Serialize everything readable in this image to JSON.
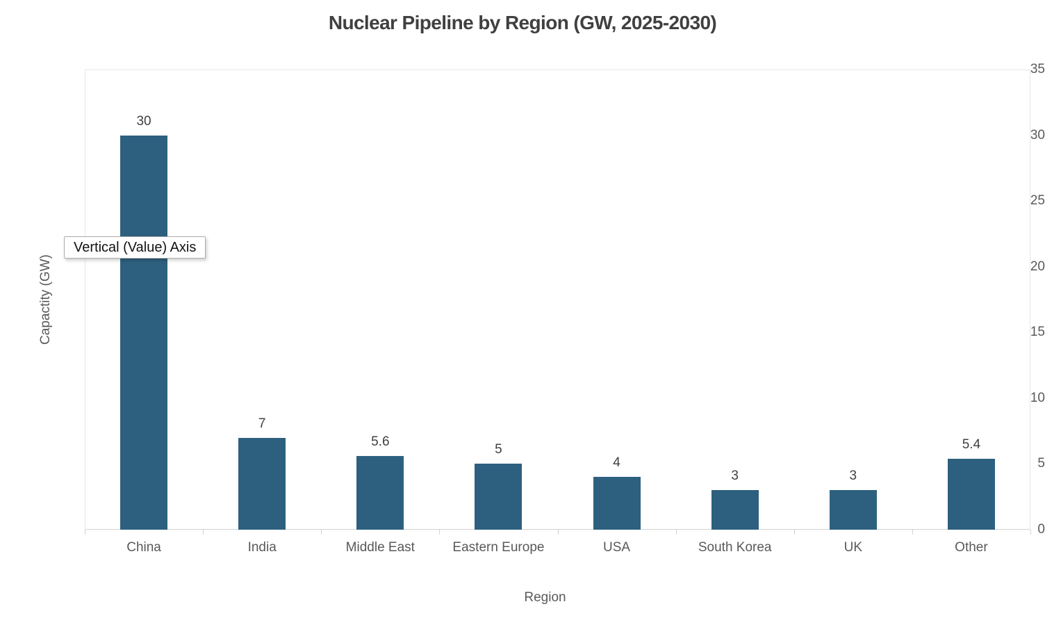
{
  "chart_data": {
    "type": "bar",
    "title": "Nuclear Pipeline by Region (GW, 2025-2030)",
    "categories": [
      "China",
      "India",
      "Middle East",
      "Eastern Europe",
      "USA",
      "South Korea",
      "UK",
      "Other"
    ],
    "values": [
      30,
      7,
      5.6,
      5,
      4,
      3,
      3,
      5.4
    ],
    "data_labels": [
      "30",
      "7",
      "5.6",
      "5",
      "4",
      "3",
      "3",
      "5.4"
    ],
    "xlabel": "Region",
    "ylabel": "Capactity (GW)",
    "ylim": [
      0,
      35
    ],
    "yticks": [
      0,
      5,
      10,
      15,
      20,
      25,
      30,
      35
    ],
    "grid": false,
    "legend": "none",
    "bar_color": "#2D607E"
  },
  "tooltip": {
    "text": "Vertical (Value) Axis"
  },
  "colors": {
    "bar": "#2D607E",
    "title_text": "#404040",
    "axis_text": "#595959",
    "axis_line": "#D2D2D2",
    "plot_border": "#E7E7E7",
    "tooltip_border": "#ACACAC"
  }
}
